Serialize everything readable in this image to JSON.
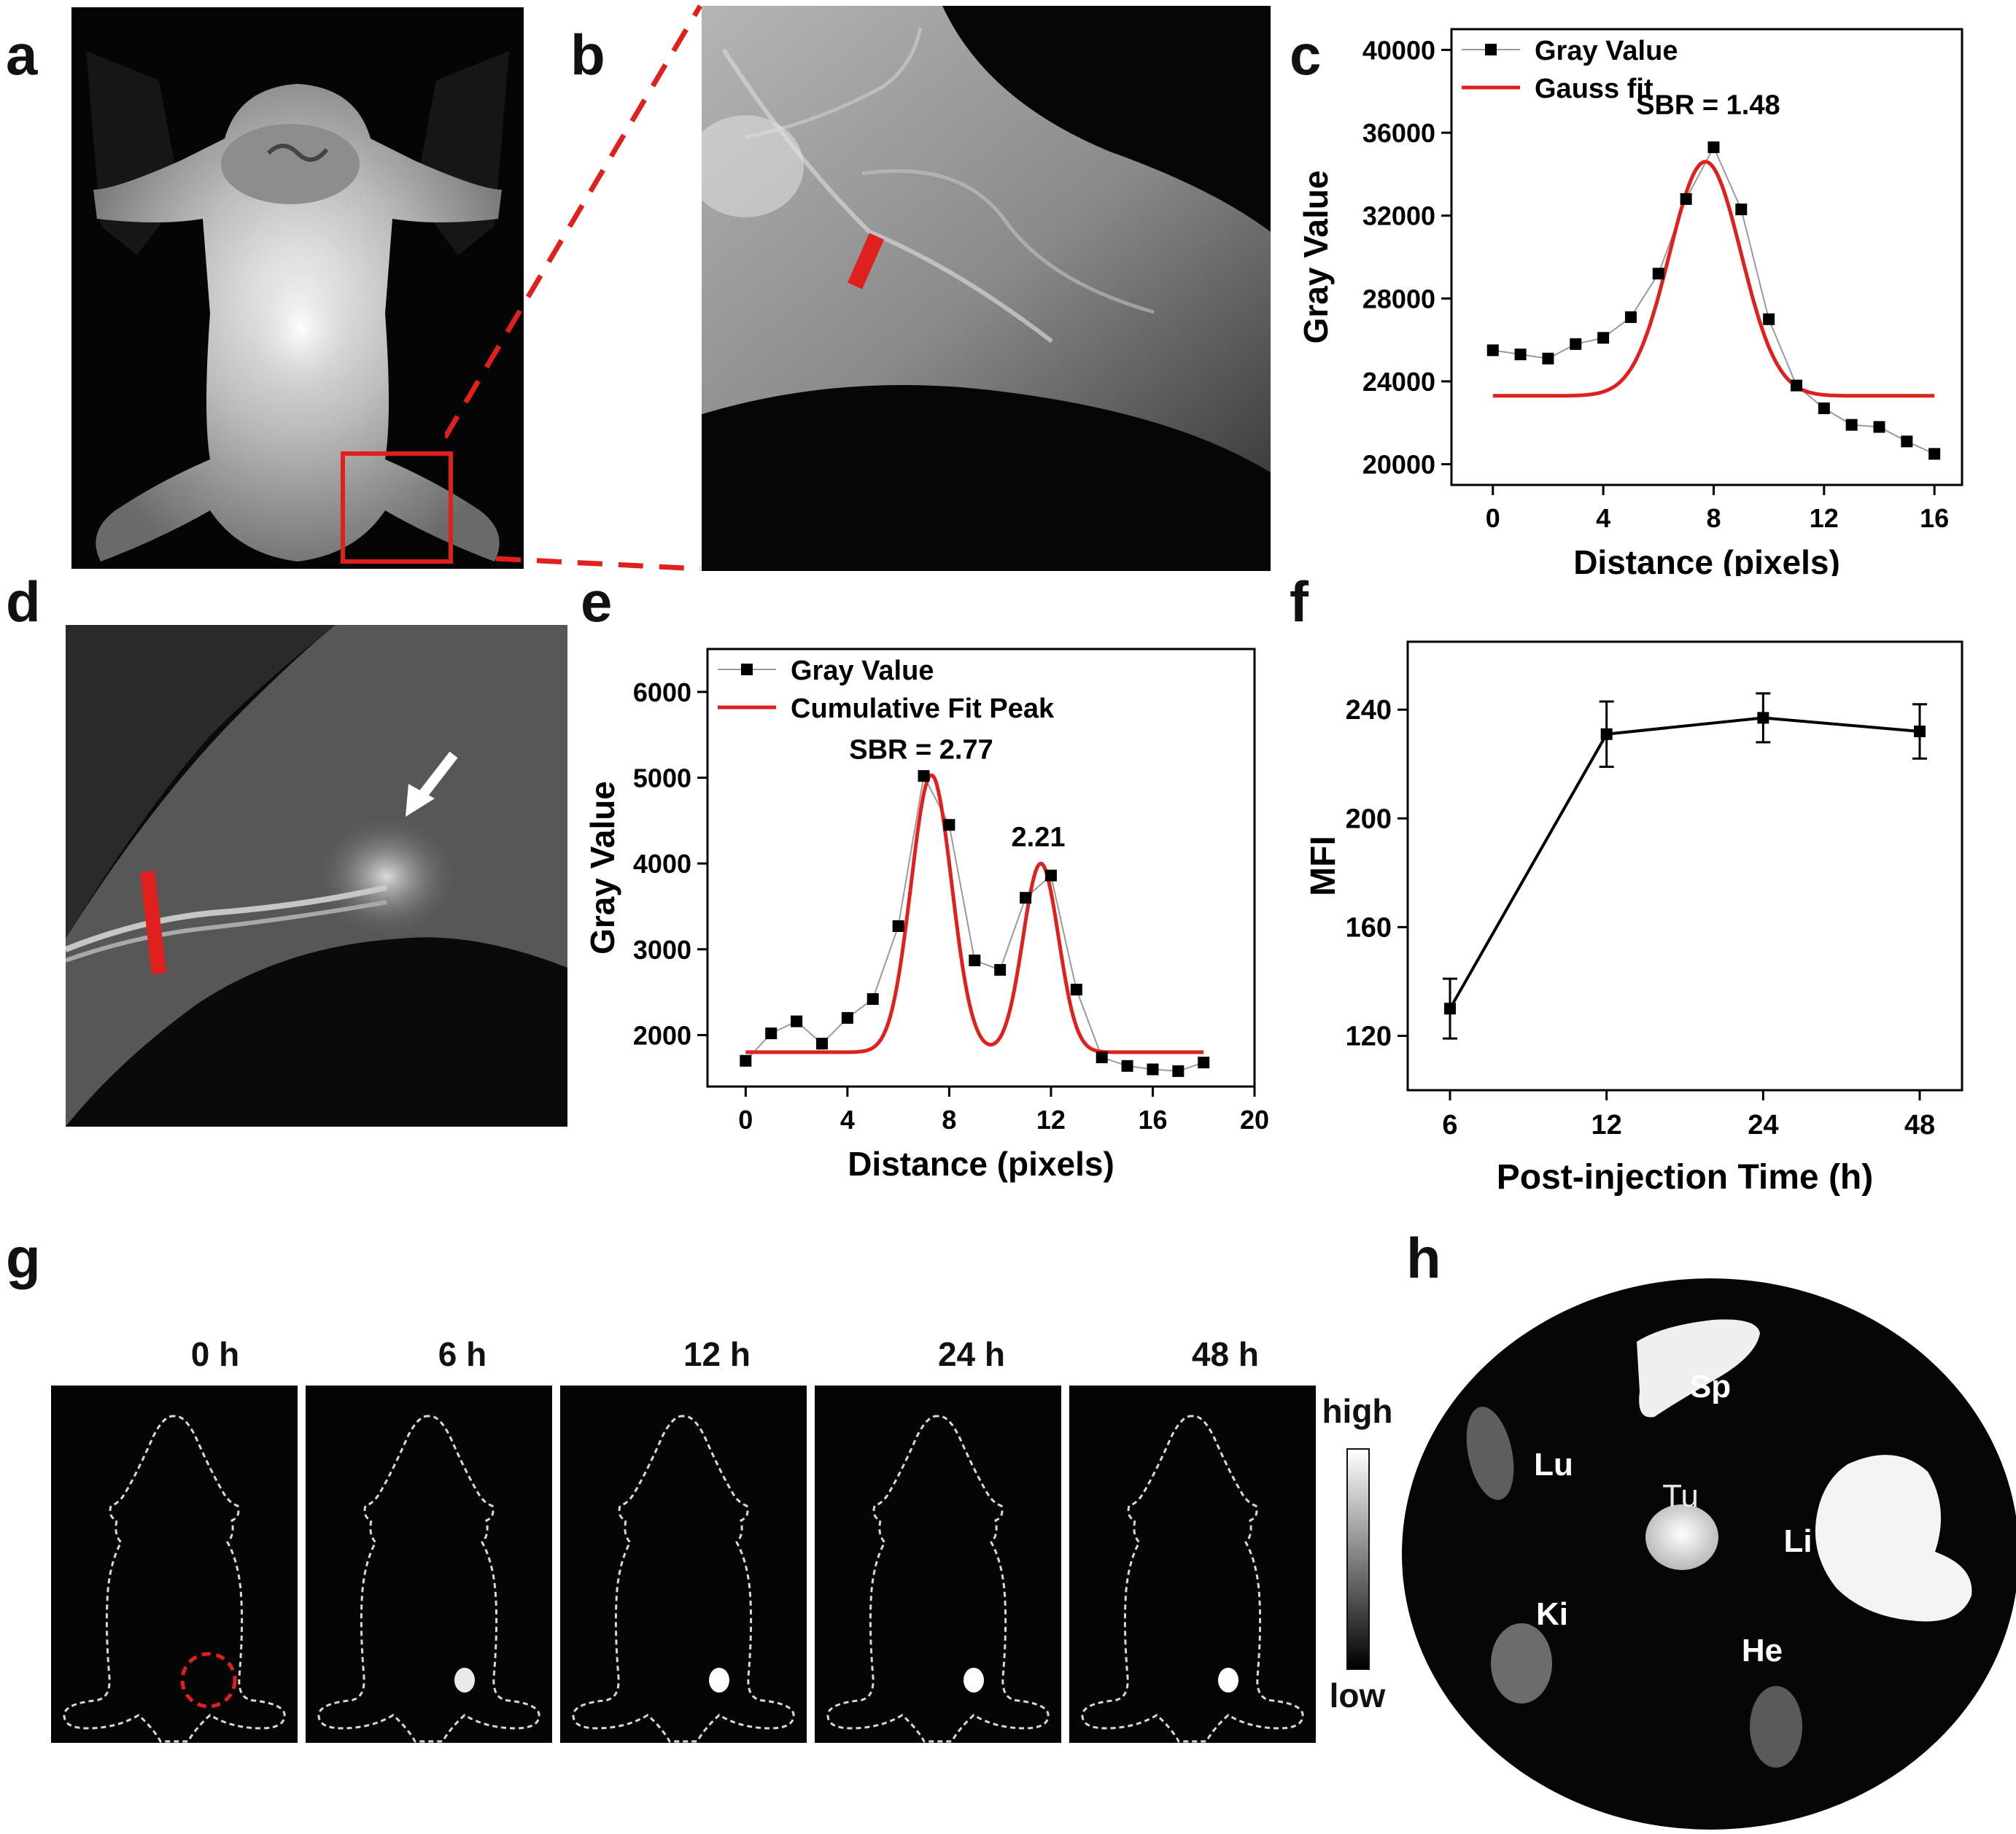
{
  "panel_labels": {
    "a": "a",
    "b": "b",
    "c": "c",
    "d": "d",
    "e": "e",
    "f": "f",
    "g": "g",
    "h": "h"
  },
  "colors": {
    "red": "#e0201c",
    "black": "#000000",
    "gray_line": "#9a9a9a"
  },
  "chart_data": [
    {
      "id": "c",
      "type": "scatter",
      "series": [
        {
          "name": "Gray Value",
          "x": [
            0,
            1,
            2,
            3,
            4,
            5,
            6,
            7,
            8,
            9,
            10,
            11,
            12,
            13,
            14,
            15,
            16
          ],
          "values": [
            25500,
            25300,
            25100,
            25800,
            26100,
            27100,
            29200,
            32800,
            35300,
            32300,
            27000,
            23800,
            22700,
            21900,
            21800,
            21100,
            20500
          ]
        },
        {
          "name": "Gauss fit",
          "fit": "gauss",
          "baseline": 23300,
          "amplitude": 11300,
          "center": 7.7,
          "sigma": 1.3
        }
      ],
      "legend": [
        "Gray Value",
        "Gauss fit"
      ],
      "annotations": [
        "SBR = 1.48"
      ],
      "xlabel": "Distance (pixels)",
      "ylabel": "Gray Value",
      "xlim": [
        -1.5,
        17
      ],
      "ylim": [
        19000,
        41000
      ],
      "xticks": [
        0,
        4,
        8,
        12,
        16
      ],
      "yticks": [
        20000,
        24000,
        28000,
        32000,
        36000,
        40000
      ]
    },
    {
      "id": "e",
      "type": "scatter",
      "series": [
        {
          "name": "Gray Value",
          "x": [
            0,
            1,
            2,
            3,
            4,
            5,
            6,
            7,
            8,
            9,
            10,
            11,
            12,
            13,
            14,
            15,
            16,
            17,
            18
          ],
          "values": [
            1700,
            2020,
            2160,
            1900,
            2200,
            2420,
            3270,
            5020,
            4450,
            2870,
            2760,
            3600,
            3860,
            2530,
            1740,
            1640,
            1600,
            1580,
            1680
          ]
        },
        {
          "name": "Cumulative Fit Peak",
          "fit": "double-gauss",
          "baseline": 1800,
          "peaks": [
            {
              "amplitude": 3230,
              "center": 7.3,
              "sigma": 0.8
            },
            {
              "amplitude": 2200,
              "center": 11.6,
              "sigma": 0.7
            }
          ]
        }
      ],
      "legend": [
        "Gray Value",
        "Cumulative Fit Peak"
      ],
      "annotations": [
        "SBR = 2.77",
        "2.21"
      ],
      "xlabel": "Distance (pixels)",
      "ylabel": "Gray Value",
      "xlim": [
        -1.5,
        20
      ],
      "ylim": [
        1400,
        6500
      ],
      "xticks": [
        0,
        4,
        8,
        12,
        16,
        20
      ],
      "yticks": [
        2000,
        3000,
        4000,
        5000,
        6000
      ]
    },
    {
      "id": "f",
      "type": "line",
      "categories": [
        "6",
        "12",
        "24",
        "48"
      ],
      "values": [
        130,
        231,
        237,
        232
      ],
      "errors": [
        11,
        12,
        9,
        10
      ],
      "xlabel": "Post-injection Time (h)",
      "ylabel": "MFI",
      "ylim": [
        100,
        265
      ],
      "yticks": [
        120,
        160,
        200,
        240
      ]
    }
  ],
  "panel_g": {
    "times": [
      "0 h",
      "6 h",
      "12 h",
      "24 h",
      "48 h"
    ],
    "tumor_signal": [
      0,
      0.8,
      1,
      1,
      1
    ],
    "colorbar_high": "high",
    "colorbar_low": "low"
  },
  "panel_h": {
    "organs": [
      {
        "id": "sp",
        "label": "Sp",
        "color": "#ffffff",
        "intensity": 0.95
      },
      {
        "id": "lu",
        "label": "Lu",
        "color": "#ffffff",
        "intensity": 0.35
      },
      {
        "id": "tu",
        "label": "Tu",
        "color": "#e8e8e8",
        "intensity": 0.9
      },
      {
        "id": "li",
        "label": "Li",
        "color": "#ffffff",
        "intensity": 1.0
      },
      {
        "id": "ki",
        "label": "Ki",
        "color": "#ffffff",
        "intensity": 0.45
      },
      {
        "id": "he",
        "label": "He",
        "color": "#ffffff",
        "intensity": 0.4
      }
    ]
  }
}
